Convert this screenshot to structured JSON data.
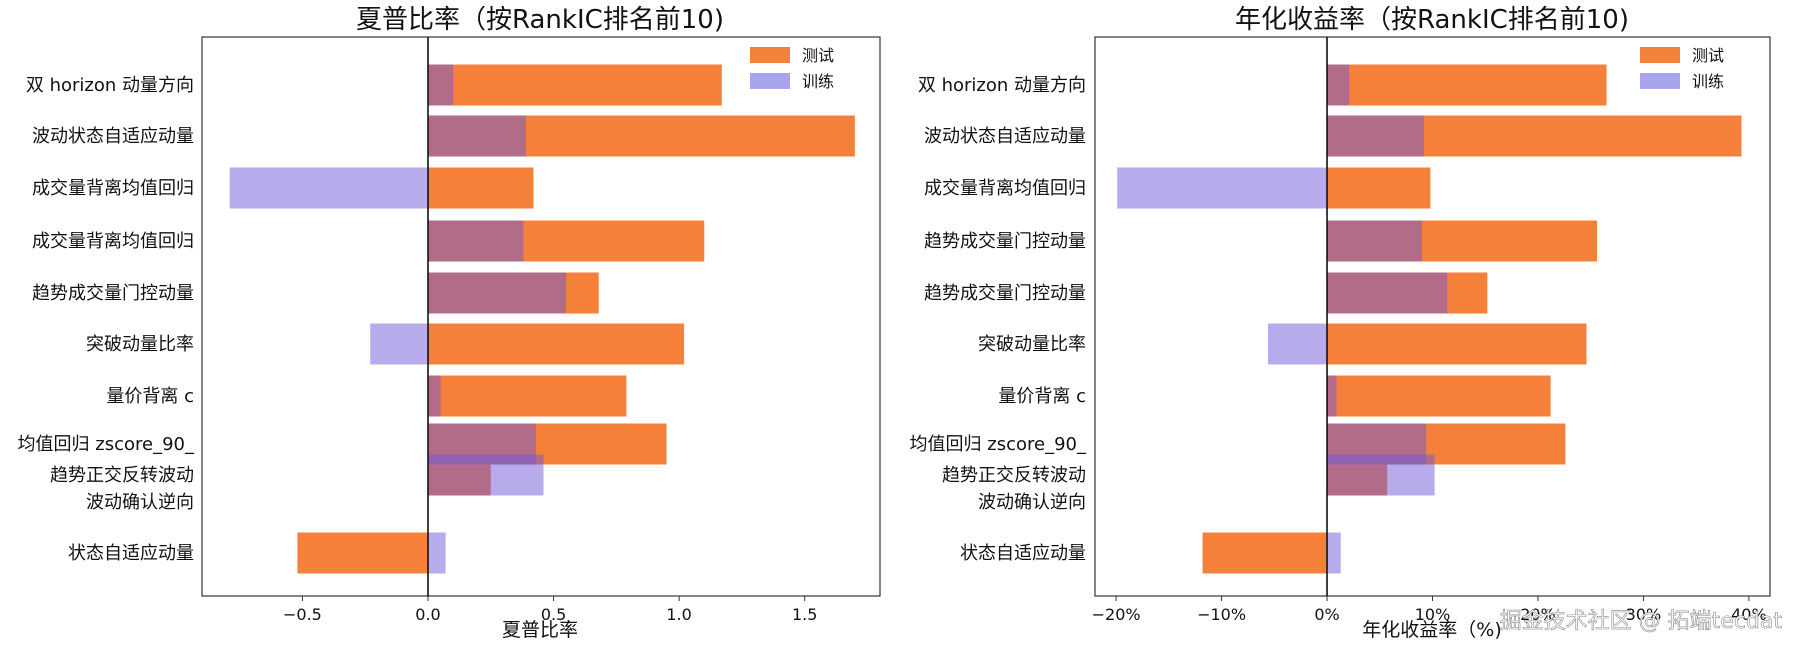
{
  "chart_data": [
    {
      "type": "bar",
      "orientation": "horizontal",
      "title": "夏普比率（按RankIC排名前10)",
      "xlabel": "夏普比率",
      "categories": [
        "双 horizon 动量方向",
        "波动状态自适应动量",
        "成交量背离均值回归",
        "成交量背离均值回归",
        "趋势成交量门控动量",
        "突破动量比率",
        "量价背离 c",
        "均值回归 zscore_90_",
        "趋势正交反转波动",
        "波动确认逆向",
        "状态自适应动量"
      ],
      "xlim": [
        -0.9,
        1.8
      ],
      "xticks": [
        -0.5,
        0.0,
        0.5,
        1.0,
        1.5
      ],
      "xtick_labels": [
        "−0.5",
        "0.0",
        "0.5",
        "1.0",
        "1.5"
      ],
      "legend_position": "top-right",
      "series": [
        {
          "name": "测试",
          "color": "#f5803a",
          "values": [
            1.17,
            1.7,
            0.42,
            1.1,
            0.68,
            1.02,
            0.79,
            0.95,
            0.25,
            null,
            -0.52
          ]
        },
        {
          "name": "训练",
          "color": "#a8a4ee",
          "values": [
            0.1,
            0.39,
            -0.79,
            0.38,
            0.55,
            -0.23,
            0.05,
            0.43,
            0.46,
            null,
            0.07
          ]
        }
      ]
    },
    {
      "type": "bar",
      "orientation": "horizontal",
      "title": "年化收益率（按RankIC排名前10)",
      "xlabel": "年化收益率（%)",
      "categories": [
        "双 horizon 动量方向",
        "波动状态自适应动量",
        "成交量背离均值回归",
        "趋势成交量门控动量",
        "趋势成交量门控动量",
        "突破动量比率",
        "量价背离 c",
        "均值回归 zscore_90_",
        "趋势正交反转波动",
        "波动确认逆向",
        "状态自适应动量"
      ],
      "xlim": [
        -22,
        42
      ],
      "xticks": [
        -20,
        -10,
        0,
        10,
        20,
        30,
        40
      ],
      "xtick_labels": [
        "−20%",
        "−10%",
        "0%",
        "10%",
        "20%",
        "30%",
        "40%"
      ],
      "legend_position": "top-right",
      "series": [
        {
          "name": "测试",
          "color": "#f5803a",
          "values": [
            26.5,
            39.3,
            9.8,
            25.6,
            15.2,
            24.6,
            21.2,
            22.6,
            5.7,
            null,
            -11.8
          ]
        },
        {
          "name": "训练",
          "color": "#a8a4ee",
          "values": [
            2.1,
            9.2,
            -19.9,
            9.0,
            11.4,
            -5.6,
            0.9,
            9.4,
            10.2,
            null,
            1.3
          ]
        }
      ]
    }
  ],
  "watermark": "掘金技术社区 @ 拓端tecdat"
}
